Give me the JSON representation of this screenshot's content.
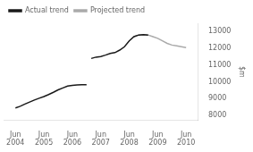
{
  "chart_data": {
    "type": "line",
    "ylabel": "$m",
    "series": [
      {
        "name": "Actual trend",
        "color": "#1a1a1a",
        "x": [
          2004.417,
          2004.583,
          2004.75,
          2004.917,
          2005.083,
          2005.25,
          2005.417,
          2005.583,
          2005.75,
          2005.917,
          2006.083,
          2006.25,
          2006.417,
          2006.583,
          2006.75,
          2006.917,
          null,
          2007.083,
          2007.25,
          2007.417,
          2007.583,
          2007.75,
          2007.917,
          2008.083,
          2008.25,
          2008.417,
          2008.583,
          2008.75,
          2008.917,
          2009.083
        ],
        "values": [
          8450,
          8550,
          8680,
          8800,
          8920,
          9030,
          9130,
          9250,
          9380,
          9530,
          9640,
          9750,
          9800,
          9820,
          9830,
          9840,
          null,
          11400,
          11480,
          11520,
          11600,
          11700,
          11750,
          11900,
          12100,
          12450,
          12700,
          12800,
          12820,
          12800
        ]
      },
      {
        "name": "Projected trend",
        "color": "#aaaaaa",
        "x": [
          2008.583,
          2008.75,
          2008.917,
          2009.083,
          2009.25,
          2009.417,
          2009.583,
          2009.75,
          2009.917,
          2010.083,
          2010.25,
          2010.417
        ],
        "values": [
          12700,
          12800,
          12820,
          12800,
          12700,
          12600,
          12450,
          12300,
          12200,
          12150,
          12100,
          12050
        ]
      }
    ],
    "xlim": [
      2004.0,
      2010.85
    ],
    "xticks": [
      {
        "value": 2004.417,
        "label": "Jun\n2004"
      },
      {
        "value": 2005.417,
        "label": "Jun\n2005"
      },
      {
        "value": 2006.417,
        "label": "Jun\n2006"
      },
      {
        "value": 2007.417,
        "label": "Jun\n2007"
      },
      {
        "value": 2008.417,
        "label": "Jun\n2008"
      },
      {
        "value": 2009.417,
        "label": "Jun\n2009"
      },
      {
        "value": 2010.417,
        "label": "Jun\n2010"
      }
    ],
    "ylim": [
      7700,
      13500
    ],
    "yticks": [
      8000,
      9000,
      10000,
      11000,
      12000,
      13000
    ],
    "grid": false,
    "legend": "upper left"
  }
}
